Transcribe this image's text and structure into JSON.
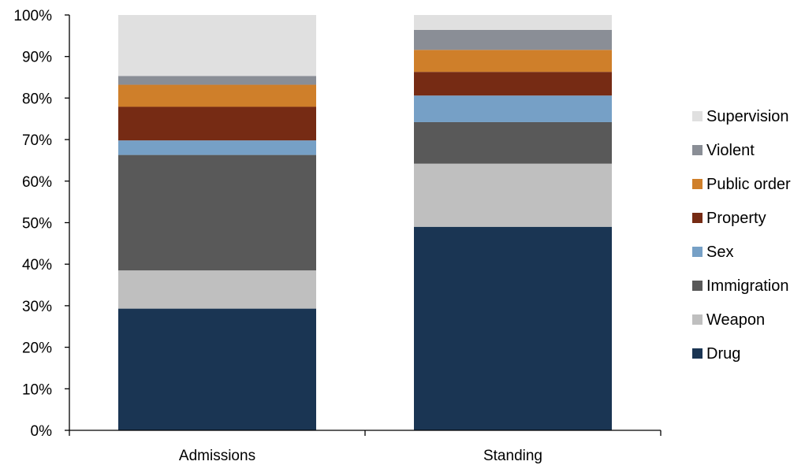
{
  "chart_data": {
    "type": "bar",
    "stacked": true,
    "categories": [
      "Admissions",
      "Standing"
    ],
    "series": [
      {
        "name": "Drug",
        "color": "#1a3553",
        "values": [
          29.3,
          49.0
        ]
      },
      {
        "name": "Weapon",
        "color": "#bfbfbf",
        "values": [
          9.2,
          15.2
        ]
      },
      {
        "name": "Immigration",
        "color": "#595959",
        "values": [
          27.8,
          10.0
        ]
      },
      {
        "name": "Sex",
        "color": "#76a0c6",
        "values": [
          3.5,
          6.4
        ]
      },
      {
        "name": "Property",
        "color": "#762b14",
        "values": [
          8.1,
          5.7
        ]
      },
      {
        "name": "Public order",
        "color": "#cf7f2a",
        "values": [
          5.3,
          5.3
        ]
      },
      {
        "name": "Violent",
        "color": "#8a8e96",
        "values": [
          2.1,
          4.8
        ]
      },
      {
        "name": "Supervision",
        "color": "#e0e0e0",
        "values": [
          14.7,
          3.6
        ]
      }
    ],
    "yticks": [
      "0%",
      "10%",
      "20%",
      "30%",
      "40%",
      "50%",
      "60%",
      "70%",
      "80%",
      "90%",
      "100%"
    ],
    "ylim": [
      0,
      100
    ],
    "legend_position": "right",
    "grid": false
  }
}
